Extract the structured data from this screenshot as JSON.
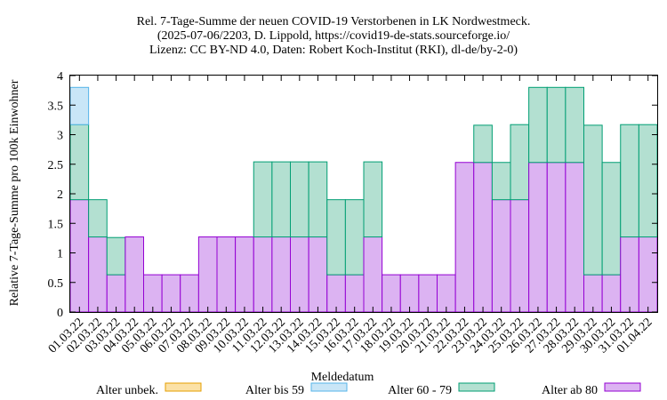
{
  "chart_data": {
    "type": "bar",
    "stacked": true,
    "title_lines": [
      "Rel. 7-Tage-Summe der neuen COVID-19 Verstorbenen in LK Nordwestmeck.",
      "(2025-07-06/2203, D. Lippold, https://covid19-de-stats.sourceforge.io/",
      "Lizenz: CC BY-ND 4.0, Daten: Robert Koch-Institut (RKI), dl-de/by-2-0)"
    ],
    "xlabel": "Meldedatum",
    "ylabel": "Relative 7-Tage-Summe pro 100k Einwohner",
    "ylim": [
      0,
      4
    ],
    "yticks": [
      "0",
      "0.5",
      "1",
      "1.5",
      "2",
      "2.5",
      "3",
      "3.5",
      "4"
    ],
    "categories": [
      "01.03.22",
      "02.03.22",
      "03.03.22",
      "04.03.22",
      "05.03.22",
      "06.03.22",
      "07.03.22",
      "08.03.22",
      "09.03.22",
      "10.03.22",
      "11.03.22",
      "12.03.22",
      "13.03.22",
      "14.03.22",
      "15.03.22",
      "16.03.22",
      "17.03.22",
      "18.03.22",
      "19.03.22",
      "20.03.22",
      "21.03.22",
      "22.03.22",
      "23.03.22",
      "24.03.22",
      "25.03.22",
      "26.03.22",
      "27.03.22",
      "28.03.22",
      "29.03.22",
      "30.03.22",
      "31.03.22",
      "01.04.22"
    ],
    "series": [
      {
        "name": "Alter ab 80",
        "color": "#dcb3f2",
        "edge": "#9400d3",
        "values": [
          1.9,
          1.27,
          0.63,
          1.27,
          0.63,
          0.63,
          0.63,
          1.27,
          1.27,
          1.27,
          1.27,
          1.27,
          1.27,
          1.27,
          0.63,
          0.63,
          1.27,
          0.63,
          0.63,
          0.63,
          0.63,
          2.53,
          2.53,
          1.9,
          1.9,
          2.53,
          2.53,
          2.53,
          0.63,
          0.63,
          1.27,
          1.27
        ]
      },
      {
        "name": "Alter 60 - 79",
        "color": "#b3e0d1",
        "edge": "#009e73",
        "values": [
          1.27,
          0.63,
          0.63,
          0,
          0,
          0,
          0,
          0,
          0,
          0,
          1.27,
          1.27,
          1.27,
          1.27,
          1.27,
          1.27,
          1.27,
          0,
          0,
          0,
          0,
          0,
          0.63,
          0.63,
          1.27,
          1.27,
          1.27,
          1.27,
          2.53,
          1.9,
          1.9,
          1.9
        ]
      },
      {
        "name": "Alter bis 59",
        "color": "#c9e6f7",
        "edge": "#56b4e9",
        "values": [
          0.63,
          0,
          0,
          0,
          0,
          0,
          0,
          0,
          0,
          0,
          0,
          0,
          0,
          0,
          0,
          0,
          0,
          0,
          0,
          0,
          0,
          0,
          0,
          0,
          0,
          0,
          0,
          0,
          0,
          0,
          0,
          0
        ]
      },
      {
        "name": "Alter unbek.",
        "color": "#fbe1a6",
        "edge": "#e69f00",
        "values": [
          0,
          0,
          0,
          0,
          0,
          0,
          0,
          0,
          0,
          0,
          0,
          0,
          0,
          0,
          0,
          0,
          0,
          0,
          0,
          0,
          0,
          0,
          0,
          0,
          0,
          0,
          0,
          0,
          0,
          0,
          0,
          0
        ]
      }
    ],
    "legend_order": [
      "Alter unbek.",
      "Alter bis 59",
      "Alter 60 - 79",
      "Alter ab 80"
    ],
    "legend_position": "bottom",
    "grid": false
  }
}
